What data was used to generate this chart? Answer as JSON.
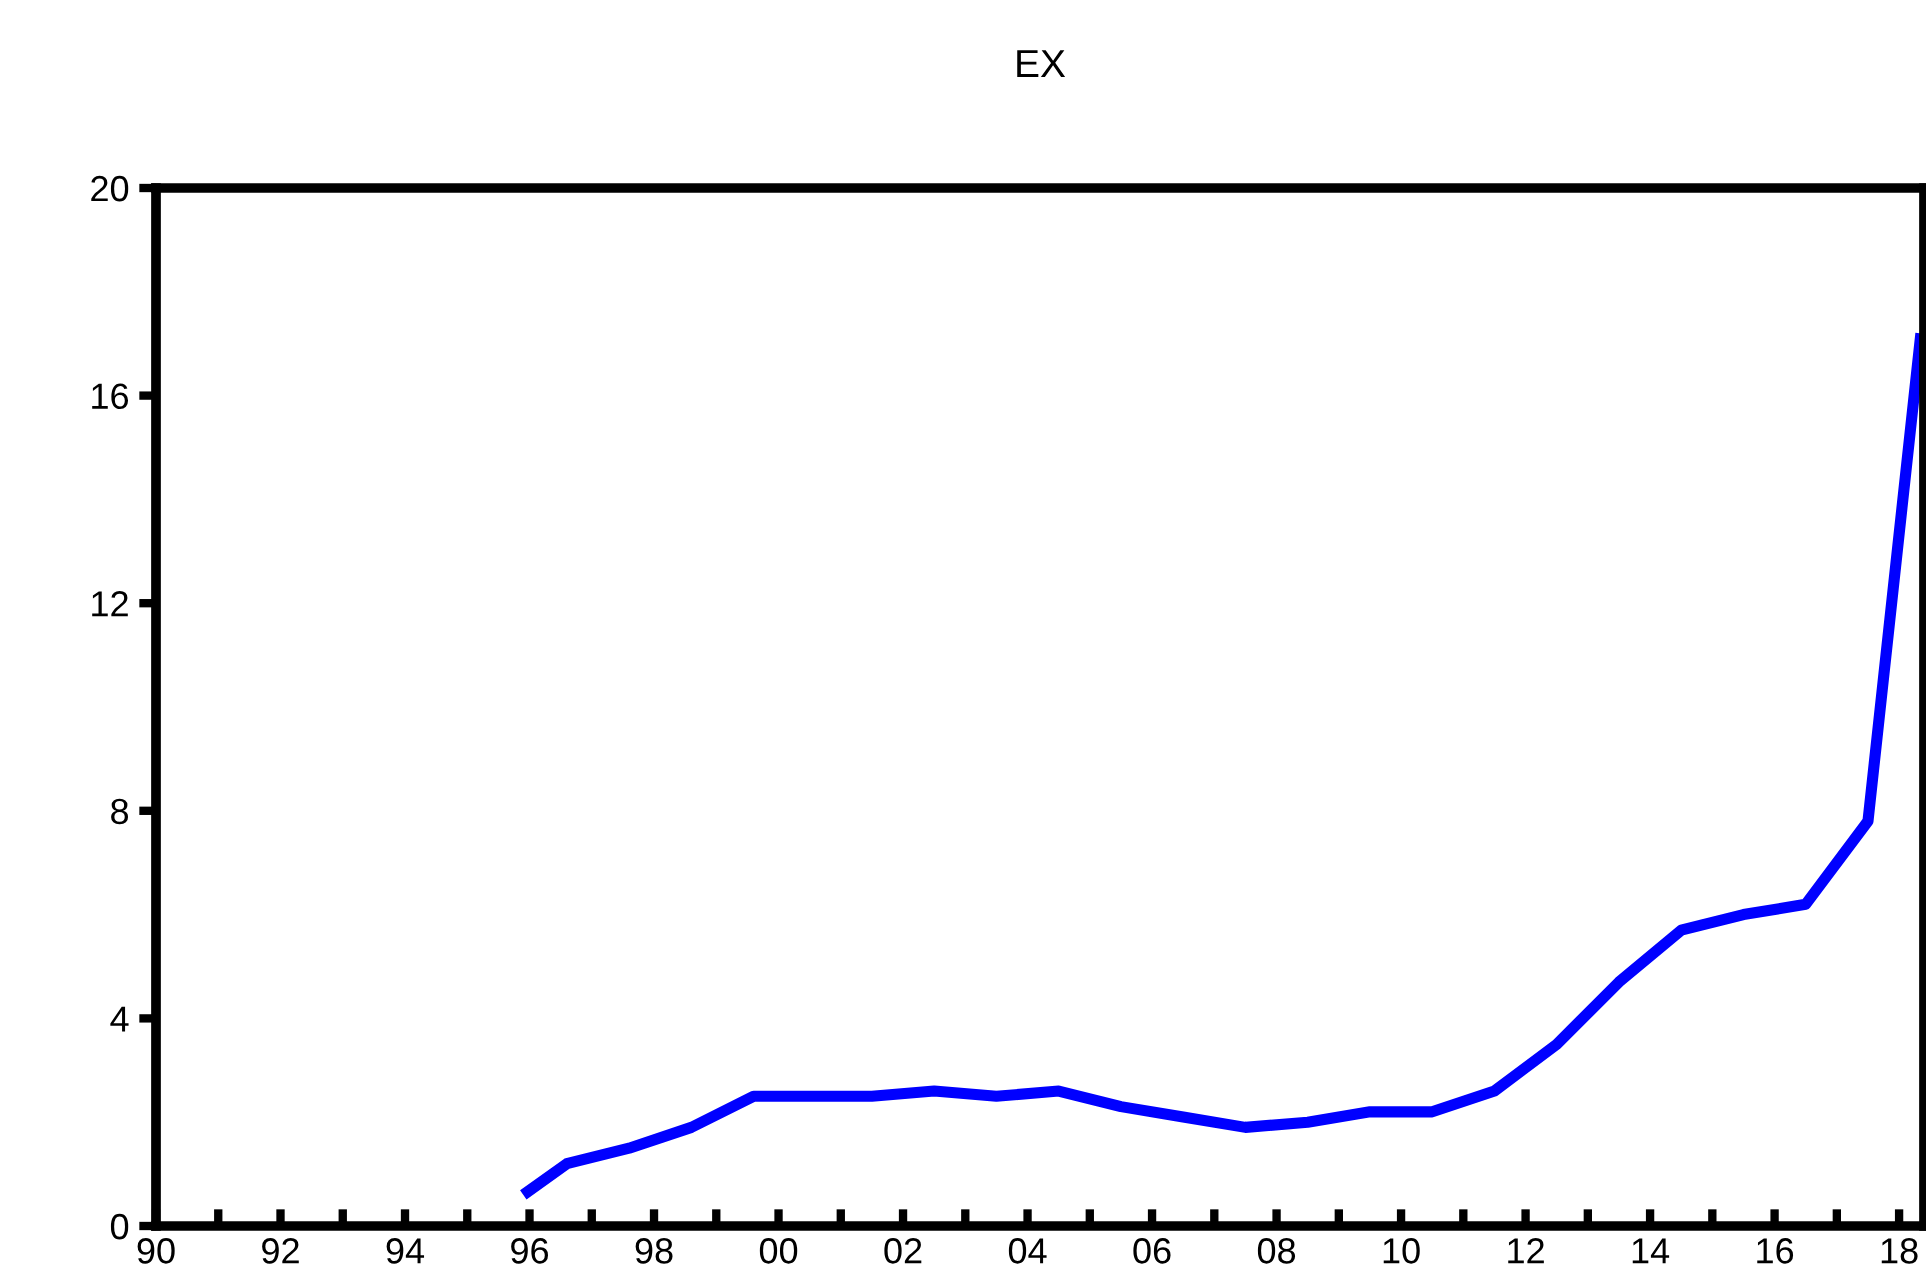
{
  "chart_data": {
    "type": "line",
    "title": "EX",
    "x": [
      1995.9,
      1996.6,
      1997.6,
      1998.6,
      1999.6,
      2000.5,
      2001.5,
      2002.5,
      2003.5,
      2004.5,
      2005.5,
      2006.5,
      2007.5,
      2008.5,
      2009.5,
      2010.5,
      2011.5,
      2012.5,
      2013.5,
      2014.5,
      2015.5,
      2016.5,
      2017.5,
      2018.35
    ],
    "series": [
      {
        "color": "#0000ff",
        "values": [
          0.6,
          1.2,
          1.5,
          1.9,
          2.5,
          2.5,
          2.5,
          2.6,
          2.5,
          2.6,
          2.3,
          2.1,
          1.9,
          2.0,
          2.2,
          2.2,
          2.6,
          3.5,
          4.7,
          5.7,
          6.0,
          6.2,
          7.8,
          17.2
        ]
      }
    ],
    "xlim": [
      1990,
      2018.4
    ],
    "xticks": [
      {
        "value": 1990,
        "label": "90"
      },
      {
        "value": 1991,
        "label": null
      },
      {
        "value": 1992,
        "label": "92"
      },
      {
        "value": 1993,
        "label": null
      },
      {
        "value": 1994,
        "label": "94"
      },
      {
        "value": 1995,
        "label": null
      },
      {
        "value": 1996,
        "label": "96"
      },
      {
        "value": 1997,
        "label": null
      },
      {
        "value": 1998,
        "label": "98"
      },
      {
        "value": 1999,
        "label": null
      },
      {
        "value": 2000,
        "label": "00"
      },
      {
        "value": 2001,
        "label": null
      },
      {
        "value": 2002,
        "label": "02"
      },
      {
        "value": 2003,
        "label": null
      },
      {
        "value": 2004,
        "label": "04"
      },
      {
        "value": 2005,
        "label": null
      },
      {
        "value": 2006,
        "label": "06"
      },
      {
        "value": 2007,
        "label": null
      },
      {
        "value": 2008,
        "label": "08"
      },
      {
        "value": 2009,
        "label": null
      },
      {
        "value": 2010,
        "label": "10"
      },
      {
        "value": 2011,
        "label": null
      },
      {
        "value": 2012,
        "label": "12"
      },
      {
        "value": 2013,
        "label": null
      },
      {
        "value": 2014,
        "label": "14"
      },
      {
        "value": 2015,
        "label": null
      },
      {
        "value": 2016,
        "label": "16"
      },
      {
        "value": 2017,
        "label": null
      },
      {
        "value": 2018,
        "label": "18"
      }
    ],
    "ylim": [
      0,
      20
    ],
    "yticks": [
      0,
      4,
      8,
      12,
      16,
      20
    ],
    "grid": false,
    "legend": false,
    "line_style": "solid",
    "marker": "none"
  }
}
